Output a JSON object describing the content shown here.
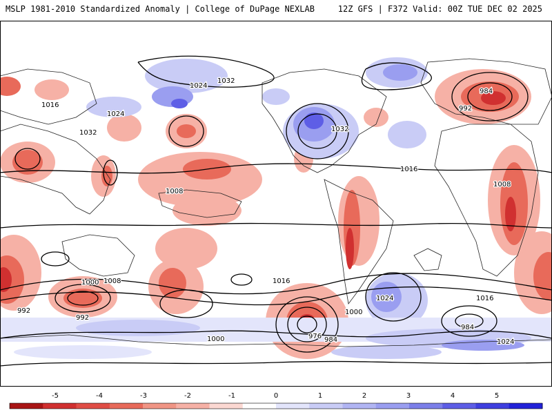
{
  "header": {
    "title_left": "MSLP 1981-2010 Standardized Anomaly | College of DuPage NEXLAB",
    "title_right": "12Z GFS | F372 Valid: 00Z TUE DEC 02 2025"
  },
  "colors": {
    "anom_neg_strong": "#d03030",
    "anom_neg_mid": "#e86a5a",
    "anom_neg_light": "#f6b1a6",
    "anom_pos_light": "#c9ccf6",
    "anom_pos_mid": "#9a9ef0",
    "anom_pos_strong": "#5e5ee6",
    "land_border": "#222222",
    "isobar": "#000000"
  },
  "isobar_labels": [
    "1016",
    "1024",
    "1032",
    "1008",
    "1000",
    "992",
    "984",
    "976"
  ],
  "colorbar": {
    "ticks": [
      "-5",
      "-4",
      "-3",
      "-2",
      "-1",
      "0",
      "1",
      "2",
      "3",
      "4",
      "5"
    ],
    "segments": [
      "#a81515",
      "#d03030",
      "#e04d45",
      "#e86a5a",
      "#f09585",
      "#f6b1a6",
      "#fbd8d2",
      "#ffffff",
      "#e3e5fb",
      "#c9ccf6",
      "#b1b5f3",
      "#9a9ef0",
      "#7c7fe9",
      "#5e5ee6",
      "#3f3fdf",
      "#2222d8"
    ]
  }
}
